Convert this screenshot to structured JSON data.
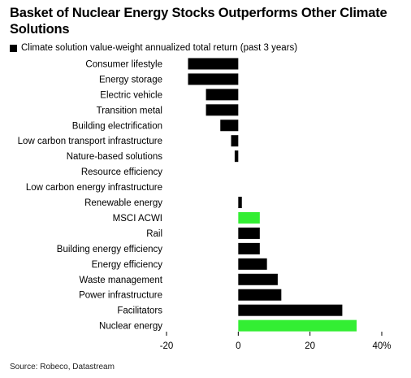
{
  "title": "Basket of Nuclear Energy Stocks Outperforms Other Climate Solutions",
  "source": "Source: Robeco, Datastream",
  "colors": {
    "default": "#000000",
    "highlight": "#33ee33"
  },
  "chart_data": {
    "type": "bar",
    "orientation": "horizontal",
    "series": [
      {
        "name": "Climate solution value-weight annualized total return (past 3 years)"
      }
    ],
    "categories": [
      "Consumer lifestyle",
      "Energy storage",
      "Electric vehicle",
      "Transition metal",
      "Building electrification",
      "Low carbon transport infrastructure",
      "Nature-based solutions",
      "Resource efficiency",
      "Low carbon energy infrastructure",
      "Renewable energy",
      "MSCI ACWI",
      "Rail",
      "Building energy efficiency",
      "Energy efficiency",
      "Waste management",
      "Power infrastructure",
      "Facilitators",
      "Nuclear energy"
    ],
    "values": [
      -14,
      -14,
      -9,
      -9,
      -5,
      -2,
      -1,
      0,
      0,
      1,
      6,
      6,
      6,
      8,
      11,
      12,
      29,
      33
    ],
    "highlight": [
      "MSCI ACWI",
      "Nuclear energy"
    ],
    "xlim": [
      -20,
      40
    ],
    "xticks": [
      -20,
      0,
      20,
      40
    ],
    "xtick_labels": [
      "-20",
      "0",
      "20",
      "40%"
    ],
    "xlabel": "",
    "ylabel": "",
    "grid": false,
    "legend": "top-left"
  }
}
